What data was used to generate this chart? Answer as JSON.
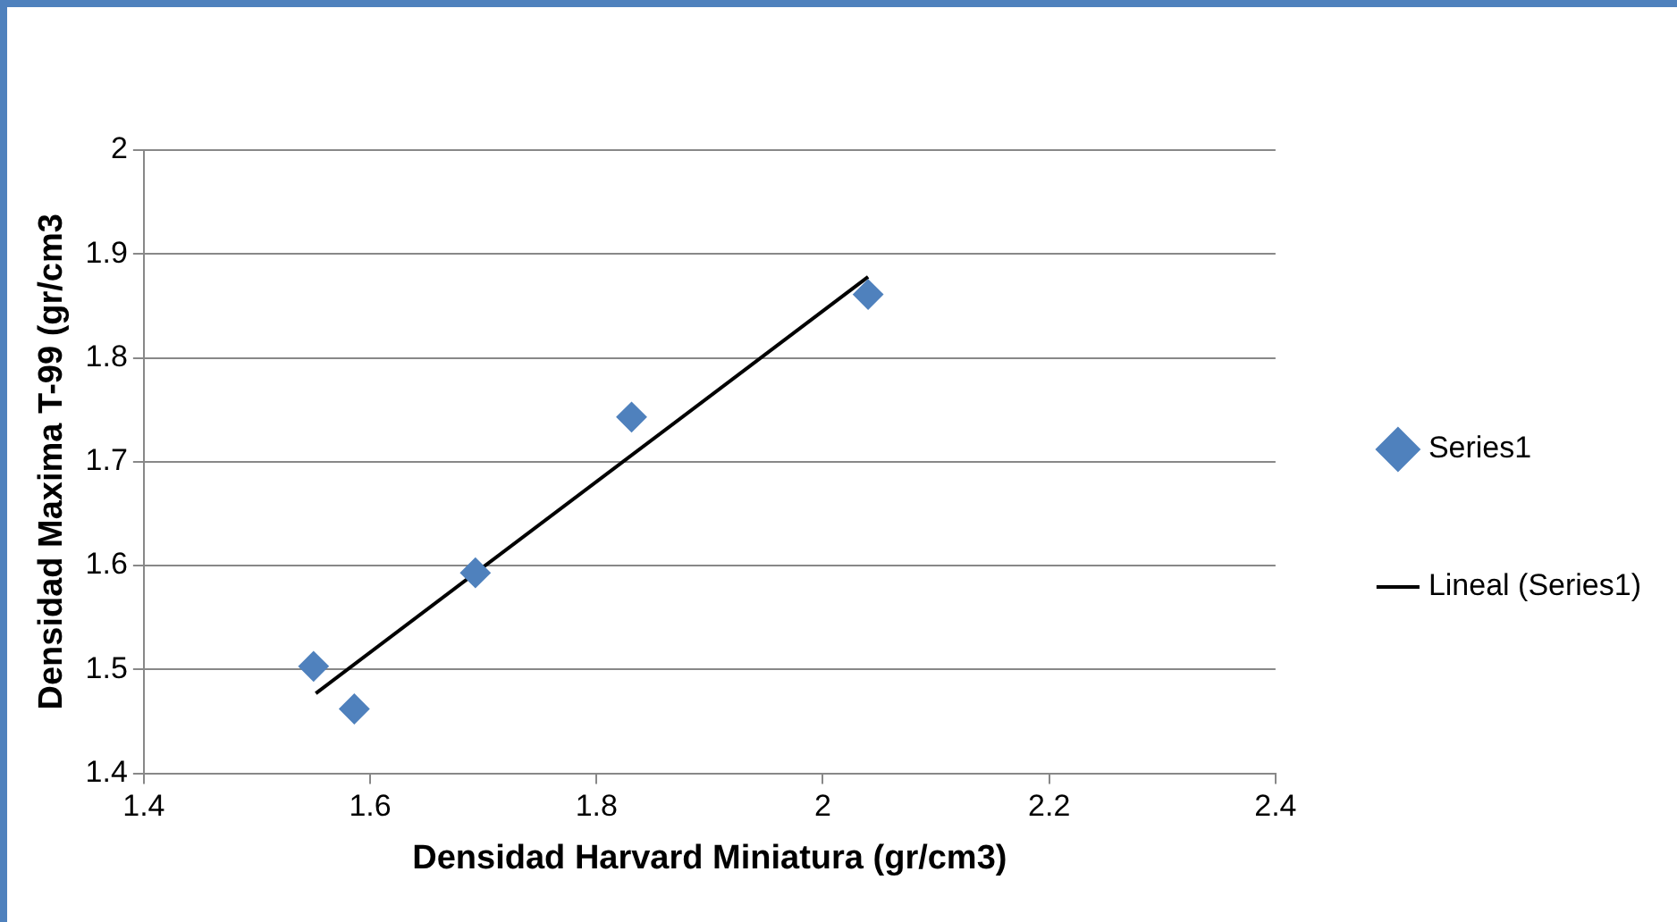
{
  "chart_data": {
    "type": "scatter",
    "xlabel": "Densidad Harvard Miniatura (gr/cm3)",
    "ylabel": "Densidad Maxima T-99 (gr/cm3",
    "series": [
      {
        "name": "Series1",
        "type": "scatter",
        "color": "#4f81bd",
        "marker": "diamond",
        "x": [
          1.55,
          1.586,
          1.693,
          1.831,
          2.04
        ],
        "values": [
          1.503,
          1.462,
          1.593,
          1.743,
          1.861
        ]
      },
      {
        "name": "Lineal (Series1)",
        "type": "line",
        "color": "#000000",
        "marker": "none",
        "line_style": "solid",
        "x": [
          1.552,
          2.04
        ],
        "values": [
          1.477,
          1.878
        ]
      }
    ],
    "xlim": [
      1.4,
      2.4
    ],
    "xticks": [
      1.4,
      1.6,
      1.8,
      2,
      2.2,
      2.4
    ],
    "ylim": [
      1.4,
      2
    ],
    "yticks": [
      1.4,
      1.5,
      1.6,
      1.7,
      1.8,
      1.9,
      2
    ],
    "grid": "y",
    "legend": "right"
  }
}
